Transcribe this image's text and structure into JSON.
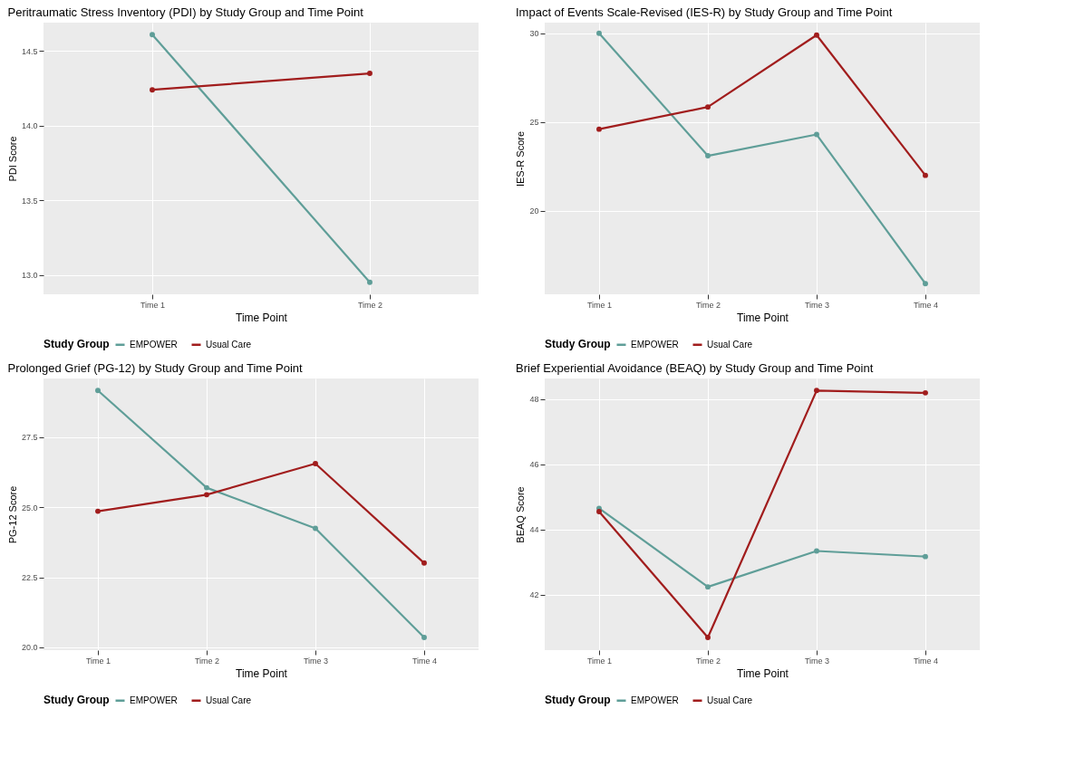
{
  "chart_data": [
    {
      "type": "line",
      "title": "Peritraumatic Stress Inventory (PDI) by Study Group and Time Point",
      "xlabel": "Time Point",
      "ylabel": "PDI Score",
      "legend_title": "Study Group",
      "legend": "bottom",
      "grid": true,
      "marker": "circle",
      "line_style": "solid",
      "categories": [
        "Time 1",
        "Time 2"
      ],
      "ylim": [
        12.87,
        14.69
      ],
      "yticks": [
        {
          "value": 13.0,
          "label": "13.0"
        },
        13.5,
        {
          "value": 14.0,
          "label": "14.0"
        },
        14.5
      ],
      "series": [
        {
          "name": "EMPOWER",
          "color": "#5f9e98",
          "values": [
            14.61,
            12.95
          ]
        },
        {
          "name": "Usual Care",
          "color": "#a11d1d",
          "values": [
            14.24,
            14.35
          ]
        }
      ]
    },
    {
      "type": "line",
      "title": "Impact of Events Scale-Revised (IES-R) by Study Group and Time Point",
      "xlabel": "Time Point",
      "ylabel": "IES-R Score",
      "legend_title": "Study Group",
      "legend": "bottom",
      "grid": true,
      "marker": "circle",
      "line_style": "solid",
      "categories": [
        "Time 1",
        "Time 2",
        "Time 3",
        "Time 4"
      ],
      "ylim": [
        15.3,
        30.6
      ],
      "yticks": [
        20,
        25,
        30
      ],
      "series": [
        {
          "name": "EMPOWER",
          "color": "#5f9e98",
          "values": [
            30.0,
            23.1,
            24.3,
            15.9
          ]
        },
        {
          "name": "Usual Care",
          "color": "#a11d1d",
          "values": [
            24.6,
            25.85,
            29.9,
            22.0
          ]
        }
      ]
    },
    {
      "type": "line",
      "title": "Prolonged Grief (PG-12) by Study Group and Time Point",
      "xlabel": "Time Point",
      "ylabel": "PG-12 Score",
      "legend_title": "Study Group",
      "legend": "bottom",
      "grid": true,
      "marker": "circle",
      "line_style": "solid",
      "categories": [
        "Time 1",
        "Time 2",
        "Time 3",
        "Time 4"
      ],
      "ylim": [
        19.9,
        29.6
      ],
      "yticks": [
        {
          "value": 20,
          "label": "20.0"
        },
        22.5,
        {
          "value": 25,
          "label": "25.0"
        },
        27.5
      ],
      "series": [
        {
          "name": "EMPOWER",
          "color": "#5f9e98",
          "values": [
            29.17,
            25.7,
            24.25,
            20.35
          ]
        },
        {
          "name": "Usual Care",
          "color": "#a11d1d",
          "values": [
            24.86,
            25.45,
            26.56,
            23.01
          ]
        }
      ]
    },
    {
      "type": "line",
      "title": "Brief Experiential Avoidance (BEAQ) by Study Group and Time Point",
      "xlabel": "Time Point",
      "ylabel": "BEAQ Score",
      "legend_title": "Study Group",
      "legend": "bottom",
      "grid": true,
      "marker": "circle",
      "line_style": "solid",
      "categories": [
        "Time 1",
        "Time 2",
        "Time 3",
        "Time 4"
      ],
      "ylim": [
        40.3,
        48.63
      ],
      "yticks": [
        42,
        44,
        46,
        48
      ],
      "series": [
        {
          "name": "EMPOWER",
          "color": "#5f9e98",
          "values": [
            44.65,
            42.24,
            43.34,
            43.17
          ]
        },
        {
          "name": "Usual Care",
          "color": "#a11d1d",
          "values": [
            44.55,
            40.69,
            48.26,
            48.19
          ]
        }
      ]
    }
  ]
}
